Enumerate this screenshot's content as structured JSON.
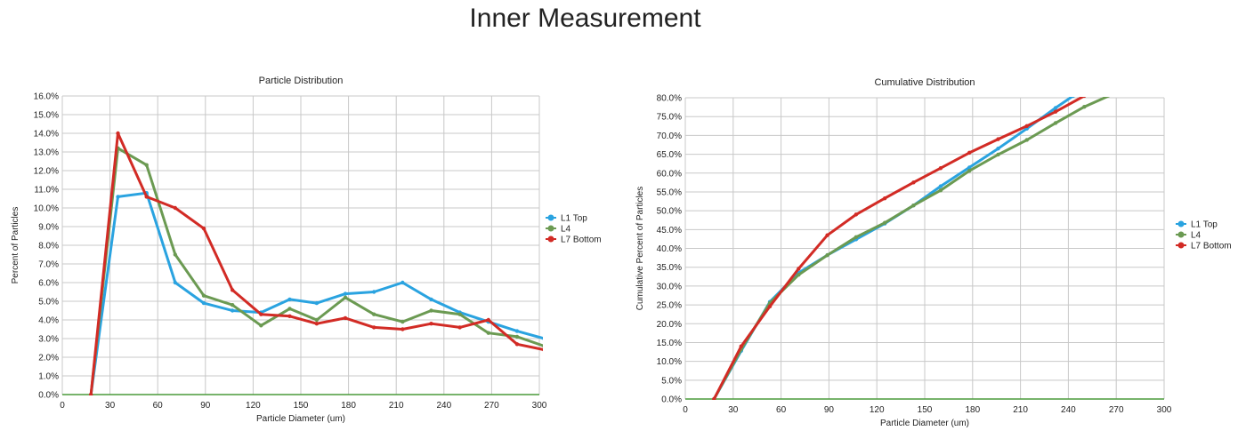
{
  "page": {
    "title": "Inner Measurement"
  },
  "colors": {
    "L1 Top": "#2aa3e0",
    "L4": "#6b9a52",
    "L7 Bottom": "#d22b25",
    "grid": "#c8c8c8",
    "baseline": "#4a9a3a"
  },
  "chart_data": [
    {
      "type": "line",
      "title": "Particle Distribution",
      "xlabel": "Particle Diameter (um)",
      "ylabel": "Percent of Particles",
      "xlim": [
        0,
        300
      ],
      "ylim": [
        0,
        16
      ],
      "x_ticks": [
        0,
        30,
        60,
        90,
        120,
        150,
        180,
        210,
        240,
        270,
        300
      ],
      "x_tick_labels": [
        "0",
        "30",
        "60",
        "90",
        "120",
        "150",
        "180",
        "210",
        "240",
        "270",
        "300"
      ],
      "y_ticks": [
        0,
        1,
        2,
        3,
        4,
        5,
        6,
        7,
        8,
        9,
        10,
        11,
        12,
        13,
        14,
        15,
        16
      ],
      "y_tick_labels": [
        "0.0%",
        "1.0%",
        "2.0%",
        "3.0%",
        "4.0%",
        "5.0%",
        "6.0%",
        "7.0%",
        "8.0%",
        "9.0%",
        "10.0%",
        "11.0%",
        "12.0%",
        "13.0%",
        "14.0%",
        "15.0%",
        "16.0%"
      ],
      "grid": true,
      "legend_position": "right",
      "series": [
        {
          "name": "L1 Top",
          "x": [
            18,
            35,
            53,
            71,
            89,
            107,
            125,
            143,
            160,
            178,
            196,
            214,
            232,
            250,
            268,
            286,
            303
          ],
          "values": [
            0,
            10.6,
            10.8,
            6.0,
            4.9,
            4.5,
            4.4,
            5.1,
            4.9,
            5.4,
            5.5,
            6.0,
            5.1,
            4.4,
            3.9,
            3.4,
            3.0
          ]
        },
        {
          "name": "L4",
          "x": [
            18,
            35,
            53,
            71,
            89,
            107,
            125,
            143,
            160,
            178,
            196,
            214,
            232,
            250,
            268,
            286,
            303
          ],
          "values": [
            0,
            13.2,
            12.3,
            7.5,
            5.3,
            4.8,
            3.7,
            4.6,
            4.0,
            5.2,
            4.3,
            3.9,
            4.5,
            4.3,
            3.3,
            3.1,
            2.6
          ]
        },
        {
          "name": "L7 Bottom",
          "x": [
            18,
            35,
            53,
            71,
            89,
            107,
            125,
            143,
            160,
            178,
            196,
            214,
            232,
            250,
            268,
            286,
            303
          ],
          "values": [
            0,
            14.0,
            10.6,
            10.0,
            8.9,
            5.6,
            4.3,
            4.2,
            3.8,
            4.1,
            3.6,
            3.5,
            3.8,
            3.6,
            4.0,
            2.7,
            2.4
          ]
        }
      ]
    },
    {
      "type": "line",
      "title": "Cumulative Distribution",
      "xlabel": "Particle Diameter (um)",
      "ylabel": "Cumulative Percent of Particles",
      "xlim": [
        0,
        300
      ],
      "ylim": [
        0,
        80
      ],
      "x_ticks": [
        0,
        30,
        60,
        90,
        120,
        150,
        180,
        210,
        240,
        270,
        300
      ],
      "x_tick_labels": [
        "0",
        "30",
        "60",
        "90",
        "120",
        "150",
        "180",
        "210",
        "240",
        "270",
        "300"
      ],
      "y_ticks": [
        0,
        5,
        10,
        15,
        20,
        25,
        30,
        35,
        40,
        45,
        50,
        55,
        60,
        65,
        70,
        75,
        80
      ],
      "y_tick_labels": [
        "0.0%",
        "5.0%",
        "10.0%",
        "15.0%",
        "20.0%",
        "25.0%",
        "30.0%",
        "35.0%",
        "40.0%",
        "45.0%",
        "50.0%",
        "55.0%",
        "60.0%",
        "65.0%",
        "70.0%",
        "75.0%",
        "80.0%"
      ],
      "grid": true,
      "legend_position": "right",
      "series": [
        {
          "name": "L1 Top",
          "x": [
            18,
            35,
            53,
            71,
            89,
            107,
            125,
            143,
            160,
            178,
            196,
            214,
            232,
            243
          ],
          "values": [
            0,
            12.8,
            25.8,
            33.5,
            38.2,
            42.4,
            46.6,
            51.4,
            56.5,
            61.5,
            66.5,
            71.8,
            77.3,
            80.5
          ]
        },
        {
          "name": "L4",
          "x": [
            18,
            35,
            53,
            71,
            89,
            107,
            125,
            143,
            160,
            178,
            196,
            214,
            232,
            250,
            268
          ],
          "values": [
            0,
            13.2,
            25.5,
            33.0,
            38.2,
            43.0,
            46.8,
            51.4,
            55.4,
            60.6,
            64.9,
            68.8,
            73.3,
            77.6,
            81.0
          ]
        },
        {
          "name": "L7 Bottom",
          "x": [
            18,
            35,
            53,
            71,
            89,
            107,
            125,
            143,
            160,
            178,
            196,
            214,
            232,
            250
          ],
          "values": [
            0,
            14.0,
            24.6,
            34.6,
            43.5,
            49.0,
            53.3,
            57.5,
            61.3,
            65.4,
            69.0,
            72.5,
            76.3,
            80.5
          ]
        }
      ]
    }
  ]
}
